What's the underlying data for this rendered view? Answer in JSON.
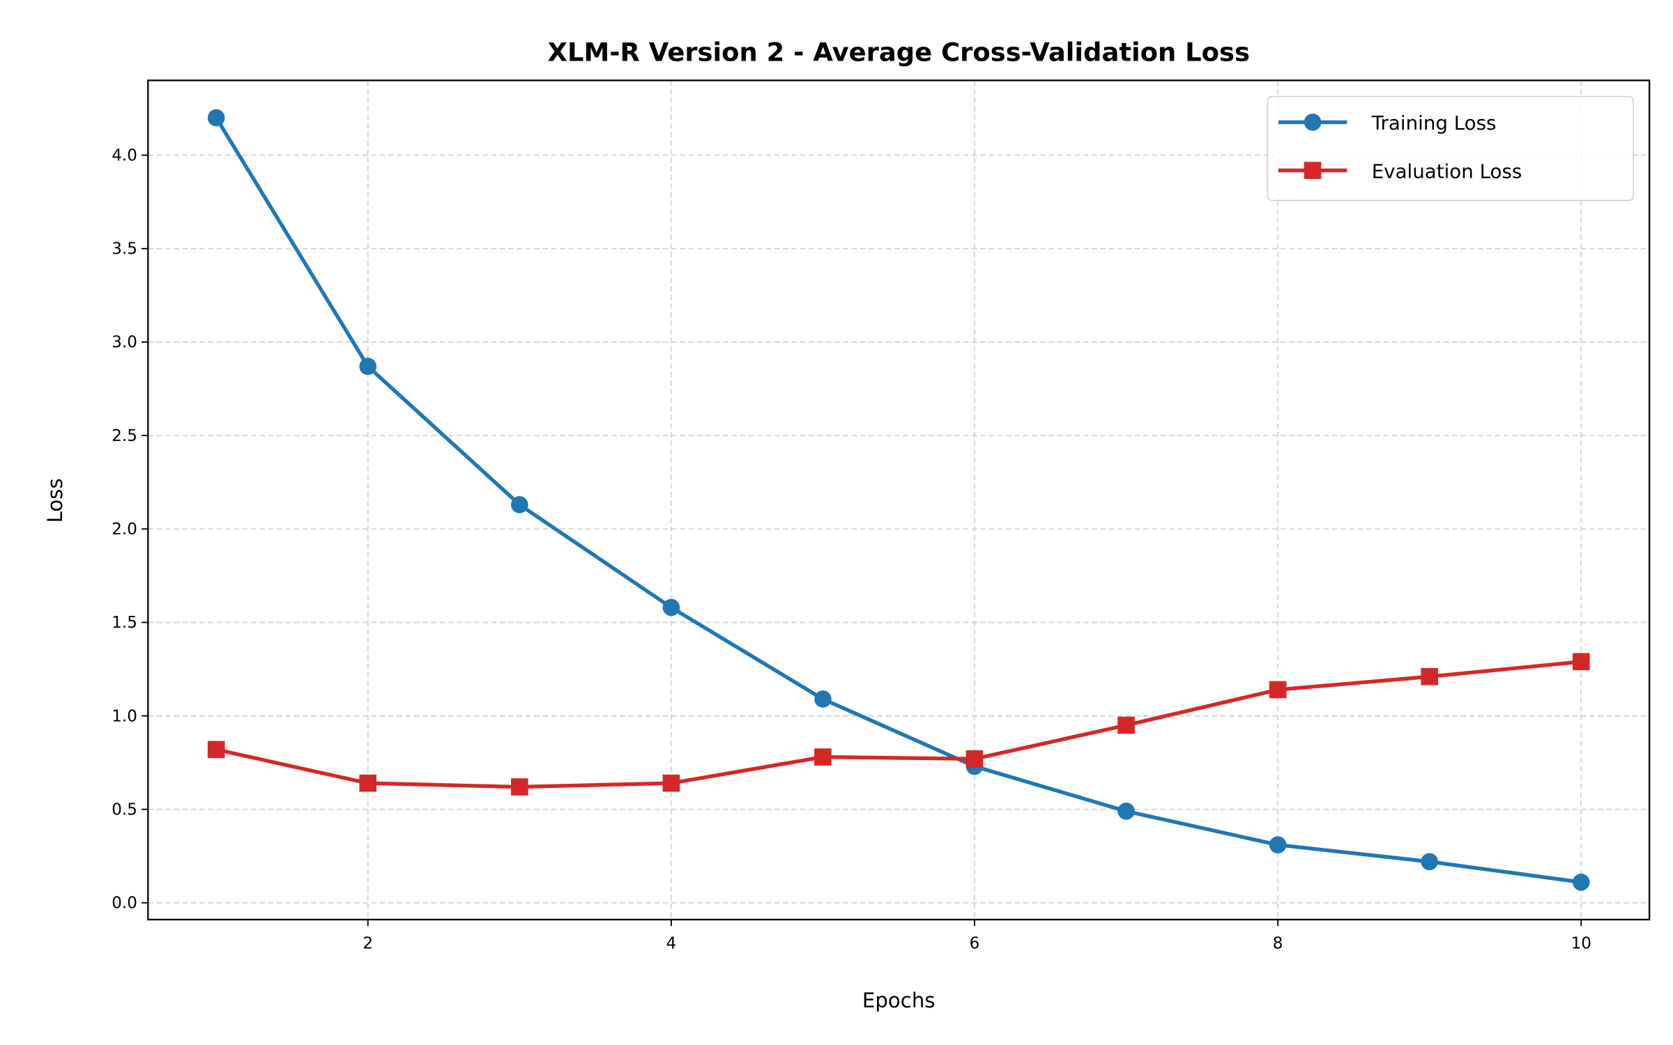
{
  "chart_data": {
    "type": "line",
    "title": "XLM-R Version 2 - Average Cross-Validation Loss",
    "xlabel": "Epochs",
    "ylabel": "Loss",
    "x": [
      1,
      2,
      3,
      4,
      5,
      6,
      7,
      8,
      9,
      10
    ],
    "xlim": [
      0.55,
      10.45
    ],
    "ylim": [
      -0.09,
      4.4
    ],
    "xticks": [
      2,
      4,
      6,
      8,
      10
    ],
    "xtick_labels": [
      "2",
      "4",
      "6",
      "8",
      "10"
    ],
    "yticks": [
      0,
      0.5,
      1,
      1.5,
      2,
      2.5,
      3,
      3.5,
      4
    ],
    "ytick_labels": [
      "0.0",
      "0.5",
      "1.0",
      "1.5",
      "2.0",
      "2.5",
      "3.0",
      "3.5",
      "4.0"
    ],
    "grid": true,
    "legend_position": "top-right",
    "series": [
      {
        "name": "Training Loss",
        "color": "#1f77b4",
        "marker": "circle",
        "values": [
          4.2,
          2.87,
          2.13,
          1.58,
          1.09,
          0.73,
          0.49,
          0.31,
          0.22,
          0.11
        ]
      },
      {
        "name": "Evaluation Loss",
        "color": "#d62728",
        "marker": "square",
        "values": [
          0.82,
          0.64,
          0.62,
          0.64,
          0.78,
          0.77,
          0.95,
          1.14,
          1.21,
          1.29
        ]
      }
    ]
  }
}
